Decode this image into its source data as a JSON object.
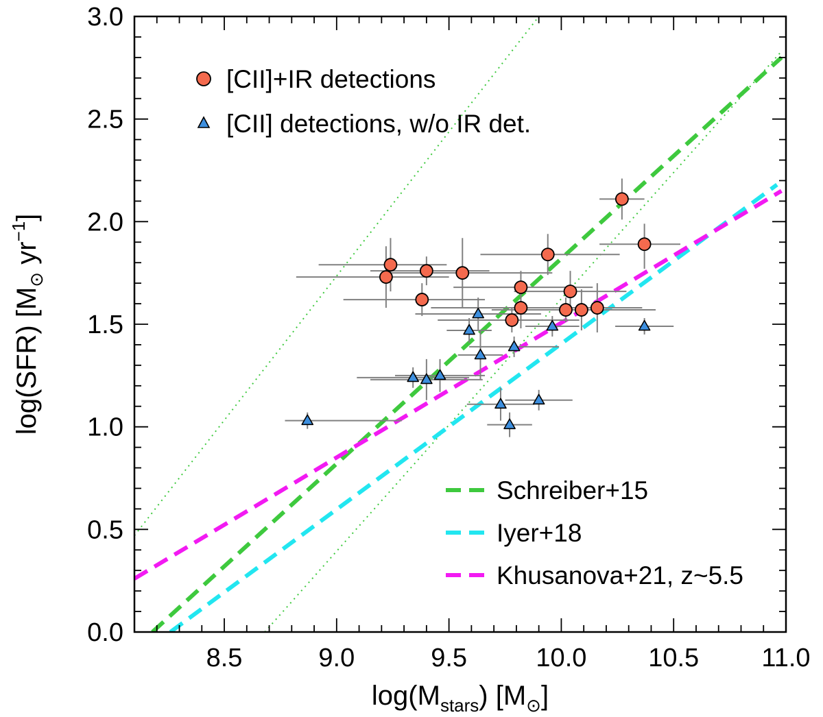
{
  "chart_data": {
    "type": "scatter",
    "xlabel": {
      "prefix": "log(M",
      "sub": "stars",
      "suffix": ") [M",
      "sun_sub": "⊙",
      "close": "]"
    },
    "ylabel": {
      "prefix": "log(SFR) [M",
      "sun_sub": "⊙",
      "mid": " yr",
      "sup": "−1",
      "close": "]"
    },
    "xlim": [
      8.1,
      11.0
    ],
    "ylim": [
      0.0,
      3.0
    ],
    "xticks": [
      {
        "value": 8.5,
        "label": "8.5"
      },
      {
        "value": 9.0,
        "label": "9.0"
      },
      {
        "value": 9.5,
        "label": "9.5"
      },
      {
        "value": 10.0,
        "label": "10.0"
      },
      {
        "value": 10.5,
        "label": "10.5"
      },
      {
        "value": 11.0,
        "label": "11.0"
      }
    ],
    "yticks": [
      {
        "value": 0.0,
        "label": "0.0"
      },
      {
        "value": 0.5,
        "label": "0.5"
      },
      {
        "value": 1.0,
        "label": "1.0"
      },
      {
        "value": 1.5,
        "label": "1.5"
      },
      {
        "value": 2.0,
        "label": "2.0"
      },
      {
        "value": 2.5,
        "label": "2.5"
      },
      {
        "value": 3.0,
        "label": "3.0"
      }
    ],
    "xminor_step": 0.1,
    "yminor_step": 0.1,
    "colors": {
      "circle_fill": "#f46a4e",
      "triangle_fill": "#3d8fdf",
      "errorbar": "#808080",
      "schreiber": "#3ec93e",
      "iyer": "#22e6f0",
      "khusanova": "#f21af2"
    },
    "legend_top": [
      {
        "label": "[CII]+IR detections",
        "marker": "circle"
      },
      {
        "label": "[CII] detections, w/o IR det.",
        "marker": "triangle"
      }
    ],
    "legend_bottom": [
      {
        "label": "Schreiber+15",
        "color_key": "schreiber"
      },
      {
        "label": "Iyer+18",
        "color_key": "iyer"
      },
      {
        "label": "Khusanova+21, z~5.5",
        "color_key": "khusanova"
      }
    ],
    "lines": [
      {
        "name": "Schreiber+15",
        "style": "dashed",
        "color_key": "schreiber",
        "x": [
          8.18,
          10.98
        ],
        "y": [
          0.0,
          2.8
        ]
      },
      {
        "name": "Schreiber+15 upper",
        "style": "dotted",
        "color_key": "schreiber",
        "x": [
          8.1,
          9.9
        ],
        "y": [
          0.47,
          3.0
        ]
      },
      {
        "name": "Schreiber+15 lower",
        "style": "dotted",
        "color_key": "schreiber",
        "x": [
          8.68,
          10.98
        ],
        "y": [
          0.0,
          2.83
        ]
      },
      {
        "name": "Iyer+18",
        "style": "dashed",
        "color_key": "iyer",
        "x": [
          8.26,
          10.96
        ],
        "y": [
          0.0,
          2.18
        ]
      },
      {
        "name": "Khusanova+21, z~5.5",
        "style": "dashed",
        "color_key": "khusanova",
        "x": [
          8.1,
          10.98
        ],
        "y": [
          0.26,
          2.15
        ]
      }
    ],
    "series": [
      {
        "name": "[CII]+IR detections",
        "marker": "circle",
        "points": [
          {
            "x": 9.22,
            "y": 1.73,
            "xerr": [
              0.4,
              0.28
            ],
            "yerr": [
              0.15,
              0.15
            ]
          },
          {
            "x": 9.24,
            "y": 1.79,
            "xerr": [
              0.32,
              0.25
            ],
            "yerr": [
              0.13,
              0.13
            ]
          },
          {
            "x": 9.38,
            "y": 1.62,
            "xerr": [
              0.35,
              0.28
            ],
            "yerr": [
              0.08,
              0.08
            ]
          },
          {
            "x": 9.4,
            "y": 1.76,
            "xerr": [
              0.25,
              0.28
            ],
            "yerr": [
              0.07,
              0.07
            ]
          },
          {
            "x": 9.56,
            "y": 1.75,
            "xerr": [
              0.35,
              0.4
            ],
            "yerr": [
              0.17,
              0.17
            ]
          },
          {
            "x": 9.78,
            "y": 1.52,
            "xerr": [
              0.33,
              0.3
            ],
            "yerr": [
              0.06,
              0.06
            ]
          },
          {
            "x": 9.82,
            "y": 1.58,
            "xerr": [
              0.4,
              0.32
            ],
            "yerr": [
              0.1,
              0.1
            ]
          },
          {
            "x": 9.82,
            "y": 1.68,
            "xerr": [
              0.3,
              0.32
            ],
            "yerr": [
              0.08,
              0.08
            ]
          },
          {
            "x": 9.94,
            "y": 1.84,
            "xerr": [
              0.3,
              0.32
            ],
            "yerr": [
              0.1,
              0.1
            ]
          },
          {
            "x": 10.02,
            "y": 1.57,
            "xerr": [
              0.33,
              0.4
            ],
            "yerr": [
              0.06,
              0.06
            ]
          },
          {
            "x": 10.04,
            "y": 1.66,
            "xerr": [
              0.25,
              0.25
            ],
            "yerr": [
              0.1,
              0.1
            ]
          },
          {
            "x": 10.09,
            "y": 1.57,
            "xerr": [
              0.2,
              0.2
            ],
            "yerr": [
              0.1,
              0.1
            ]
          },
          {
            "x": 10.16,
            "y": 1.58,
            "xerr": [
              0.2,
              0.2
            ],
            "yerr": [
              0.12,
              0.12
            ]
          },
          {
            "x": 10.27,
            "y": 2.11,
            "xerr": [
              0.1,
              0.1
            ],
            "yerr": [
              0.1,
              0.1
            ]
          },
          {
            "x": 10.37,
            "y": 1.89,
            "xerr": [
              0.2,
              0.16
            ],
            "yerr": [
              0.12,
              0.1
            ]
          }
        ]
      },
      {
        "name": "[CII] detections, w/o IR det.",
        "marker": "triangle",
        "points": [
          {
            "x": 8.87,
            "y": 1.03,
            "xerr": [
              0.1,
              0.42
            ],
            "yerr": [
              0.04,
              0.04
            ]
          },
          {
            "x": 9.34,
            "y": 1.24,
            "xerr": [
              0.25,
              0.25
            ],
            "yerr": [
              0.05,
              0.05
            ]
          },
          {
            "x": 9.4,
            "y": 1.23,
            "xerr": [
              0.25,
              0.25
            ],
            "yerr": [
              0.1,
              0.1
            ]
          },
          {
            "x": 9.46,
            "y": 1.25,
            "xerr": [
              0.2,
              0.2
            ],
            "yerr": [
              0.08,
              0.08
            ]
          },
          {
            "x": 9.59,
            "y": 1.47,
            "xerr": [
              0.1,
              0.1
            ],
            "yerr": [
              0.06,
              0.06
            ]
          },
          {
            "x": 9.63,
            "y": 1.55,
            "xerr": [
              0.28,
              0.28
            ],
            "yerr": [
              0.08,
              0.08
            ]
          },
          {
            "x": 9.64,
            "y": 1.35,
            "xerr": [
              0.1,
              0.1
            ],
            "yerr": [
              0.12,
              0.12
            ]
          },
          {
            "x": 9.73,
            "y": 1.11,
            "xerr": [
              0.15,
              0.15
            ],
            "yerr": [
              0.08,
              0.08
            ]
          },
          {
            "x": 9.77,
            "y": 1.01,
            "xerr": [
              0.1,
              0.1
            ],
            "yerr": [
              0.06,
              0.06
            ]
          },
          {
            "x": 9.79,
            "y": 1.39,
            "xerr": [
              0.2,
              0.2
            ],
            "yerr": [
              0.05,
              0.05
            ]
          },
          {
            "x": 9.9,
            "y": 1.13,
            "xerr": [
              0.15,
              0.15
            ],
            "yerr": [
              0.05,
              0.05
            ]
          },
          {
            "x": 9.96,
            "y": 1.49,
            "xerr": [
              0.12,
              0.12
            ],
            "yerr": [
              0.05,
              0.05
            ]
          },
          {
            "x": 10.37,
            "y": 1.49,
            "xerr": [
              0.13,
              0.13
            ],
            "yerr": [
              0.04,
              0.04
            ]
          }
        ]
      }
    ]
  }
}
